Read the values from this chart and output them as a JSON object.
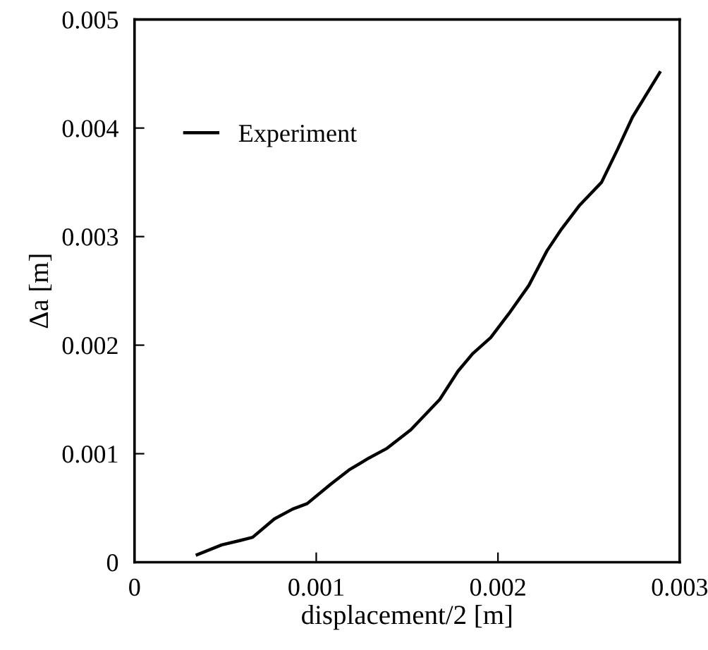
{
  "chart_data": {
    "type": "line",
    "xlabel": "displacement/2 [m]",
    "ylabel": "Δa [m]",
    "xlim": [
      0,
      0.003
    ],
    "ylim": [
      0,
      0.005
    ],
    "xticks": [
      0,
      0.001,
      0.002,
      0.003
    ],
    "yticks": [
      0,
      0.001,
      0.002,
      0.003,
      0.004,
      0.005
    ],
    "grid": false,
    "legend": "top left",
    "marker": "none",
    "line_style": "solid",
    "series": [
      {
        "name": "Experiment",
        "color": "#000000",
        "x": [
          0.000345,
          0.00048,
          0.00058,
          0.00065,
          0.00077,
          0.00087,
          0.00095,
          0.00108,
          0.00118,
          0.00129,
          0.00139,
          0.00152,
          0.00168,
          0.00178,
          0.00186,
          0.00196,
          0.00206,
          0.00217,
          0.00227,
          0.00235,
          0.00245,
          0.00257,
          0.00266,
          0.00274,
          0.00289
        ],
        "values": [
          7e-05,
          0.00016,
          0.0002,
          0.00023,
          0.0004,
          0.00049,
          0.00054,
          0.00072,
          0.00085,
          0.00096,
          0.00105,
          0.00122,
          0.0015,
          0.00176,
          0.00192,
          0.00207,
          0.00229,
          0.00255,
          0.00287,
          0.00307,
          0.00329,
          0.0035,
          0.00381,
          0.0041,
          0.00451
        ]
      }
    ]
  }
}
